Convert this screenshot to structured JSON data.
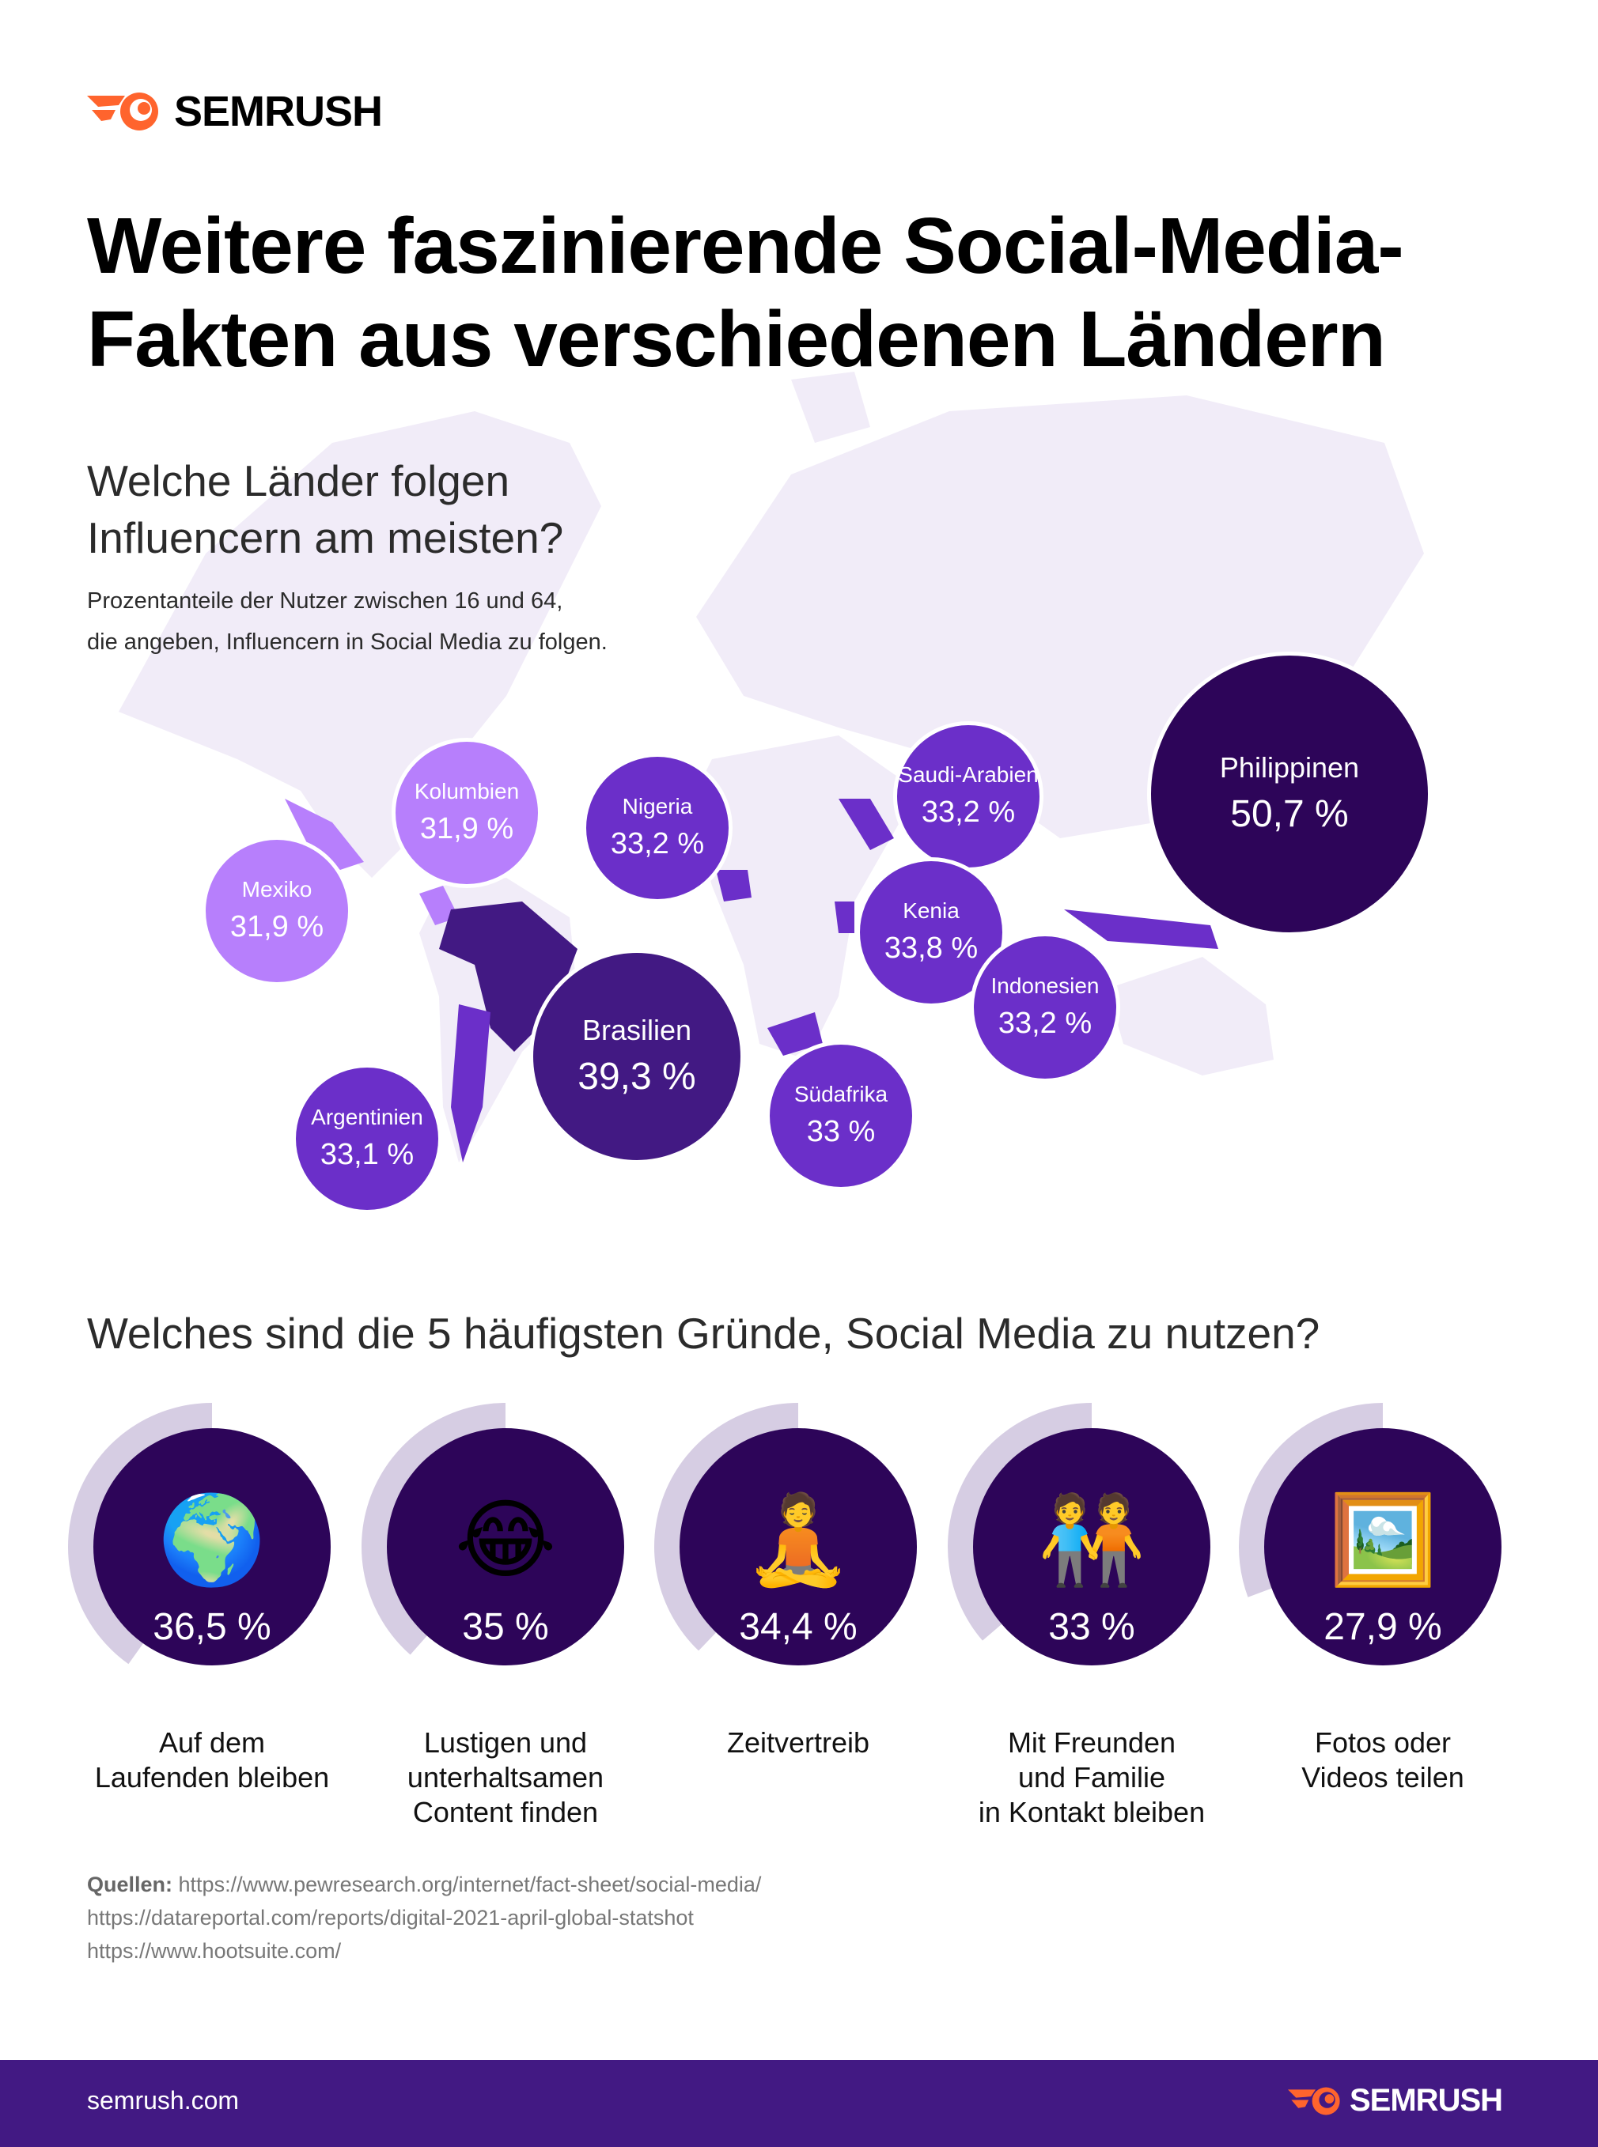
{
  "brand": {
    "name": "SEMRUSH",
    "accent": "#ff642d"
  },
  "title": "Weitere faszinierende Social-Media-Fakten aus verschiedenen Ländern",
  "map_section": {
    "heading_line1": "Welche Länder folgen",
    "heading_line2": "Influencern am meisten?",
    "desc_line1": "Prozentanteile der Nutzer zwischen 16 und 64,",
    "desc_line2": "die angeben, Influencern in Social Media zu folgen.",
    "countries": [
      {
        "name": "Philippinen",
        "value": "50,7 %",
        "color": "#2d0559"
      },
      {
        "name": "Brasilien",
        "value": "39,3 %",
        "color": "#421983"
      },
      {
        "name": "Kolumbien",
        "value": "31,9 %",
        "color": "#b77ffc"
      },
      {
        "name": "Mexiko",
        "value": "31,9 %",
        "color": "#b77ffc"
      },
      {
        "name": "Nigeria",
        "value": "33,2 %",
        "color": "#6b2fc9"
      },
      {
        "name": "Saudi-Arabien",
        "value": "33,2 %",
        "color": "#6b2fc9"
      },
      {
        "name": "Kenia",
        "value": "33,8 %",
        "color": "#6b2fc9"
      },
      {
        "name": "Indonesien",
        "value": "33,2 %",
        "color": "#6b2fc9"
      },
      {
        "name": "Südafrika",
        "value": "33 %",
        "color": "#6b2fc9"
      },
      {
        "name": "Argentinien",
        "value": "33,1 %",
        "color": "#6b2fc9"
      }
    ]
  },
  "reasons_section": {
    "heading": "Welches sind die 5 häufigsten Gründe, Social Media zu nutzen?",
    "items": [
      {
        "icon": "globe-africa-icon",
        "emoji": "🌍",
        "value": "36,5 %",
        "percent": 36.5,
        "label_lines": [
          "Auf dem",
          "Laufenden bleiben"
        ]
      },
      {
        "icon": "laughing-tears-icon",
        "emoji": "😂",
        "value": "35 %",
        "percent": 35,
        "label_lines": [
          "Lustigen und",
          "unterhaltsamen",
          "Content finden"
        ]
      },
      {
        "icon": "person-lotus-icon",
        "emoji": "🧘",
        "value": "34,4 %",
        "percent": 34.4,
        "label_lines": [
          "Zeitvertreib"
        ]
      },
      {
        "icon": "people-holding-hands-icon",
        "emoji": "🧑‍🤝‍🧑",
        "value": "33 %",
        "percent": 33,
        "label_lines": [
          "Mit Freunden",
          "und Familie",
          "in Kontakt bleiben"
        ]
      },
      {
        "icon": "framed-picture-icon",
        "emoji": "🖼️",
        "value": "27,9 %",
        "percent": 27.9,
        "label_lines": [
          "Fotos oder",
          "Videos teilen"
        ]
      }
    ]
  },
  "sources": {
    "label": "Quellen:",
    "links": [
      "https://www.pewresearch.org/internet/fact-sheet/social-media/",
      "https://datareportal.com/reports/digital-2021-april-global-statshot",
      "https://www.hootsuite.com/"
    ]
  },
  "footer": {
    "url": "semrush.com",
    "brand": "SEMRUSH"
  },
  "colors": {
    "map_land": "#f1ecf8",
    "ring": "#d6cde3",
    "circle": "#2d0559",
    "footer": "#421983"
  }
}
